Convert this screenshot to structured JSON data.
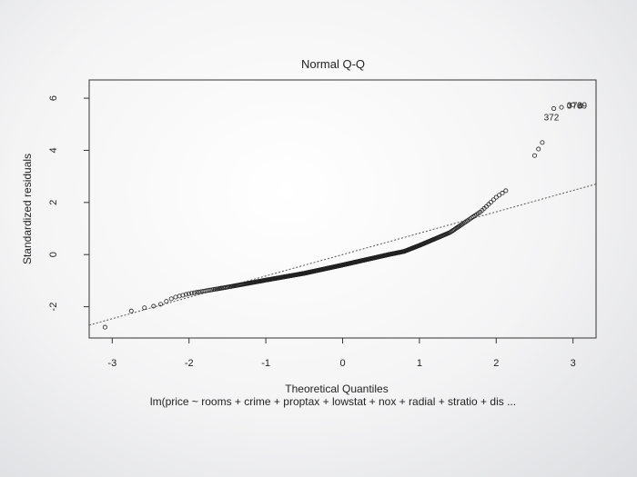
{
  "chart_data": {
    "type": "scatter",
    "title": "Normal Q-Q",
    "xlabel": "Theoretical Quantiles",
    "ylabel": "Standardized residuals",
    "subtitle": "lm(price ~ rooms + crime + proptax + lowstat + nox + radial + stratio + dis ...",
    "xlim": [
      -3.3,
      3.3
    ],
    "ylim": [
      -3.2,
      6.7
    ],
    "xticks": [
      -3,
      -2,
      -1,
      0,
      1,
      2,
      3
    ],
    "xtick_labels": [
      "-3",
      "-2",
      "-1",
      "0",
      "1",
      "2",
      "3"
    ],
    "yticks": [
      -2,
      0,
      2,
      4,
      6
    ],
    "ytick_labels": [
      "-2",
      "0",
      "2",
      "4",
      "6"
    ],
    "reference_line": {
      "intercept": 0,
      "slope": 0.82
    },
    "n": 506,
    "quantile_curve": [
      [
        -3.1,
        -2.8
      ],
      [
        -2.8,
        -2.2
      ],
      [
        -2.6,
        -2.05
      ],
      [
        -2.4,
        -1.95
      ],
      [
        -2.2,
        -1.65
      ],
      [
        -2.0,
        -1.5
      ],
      [
        -1.7,
        -1.35
      ],
      [
        -1.5,
        -1.25
      ],
      [
        -1.0,
        -0.98
      ],
      [
        -0.5,
        -0.72
      ],
      [
        0.0,
        -0.4
      ],
      [
        0.3,
        -0.2
      ],
      [
        0.6,
        0.0
      ],
      [
        0.8,
        0.12
      ],
      [
        1.0,
        0.35
      ],
      [
        1.2,
        0.6
      ],
      [
        1.4,
        0.85
      ],
      [
        1.6,
        1.25
      ],
      [
        1.8,
        1.65
      ],
      [
        2.0,
        2.2
      ],
      [
        2.2,
        2.6
      ],
      [
        2.3,
        2.75
      ],
      [
        2.4,
        2.9
      ]
    ],
    "upper_tail": [
      [
        2.5,
        3.8
      ],
      [
        2.55,
        4.05
      ],
      [
        2.6,
        4.3
      ],
      [
        2.75,
        5.6
      ],
      [
        2.85,
        5.65
      ],
      [
        2.95,
        5.72
      ],
      [
        3.0,
        5.75
      ],
      [
        3.1,
        5.7
      ]
    ],
    "point_labels": [
      {
        "text": "372",
        "x": 2.62,
        "y": 5.25
      },
      {
        "text": "3",
        "x": 2.92,
        "y": 5.7
      },
      {
        "text": "73",
        "x": 2.99,
        "y": 5.7
      },
      {
        "text": "69",
        "x": 3.05,
        "y": 5.7
      }
    ],
    "colors": {
      "points": "#222222",
      "reference_line": "#555555",
      "frame": "#333333"
    }
  }
}
